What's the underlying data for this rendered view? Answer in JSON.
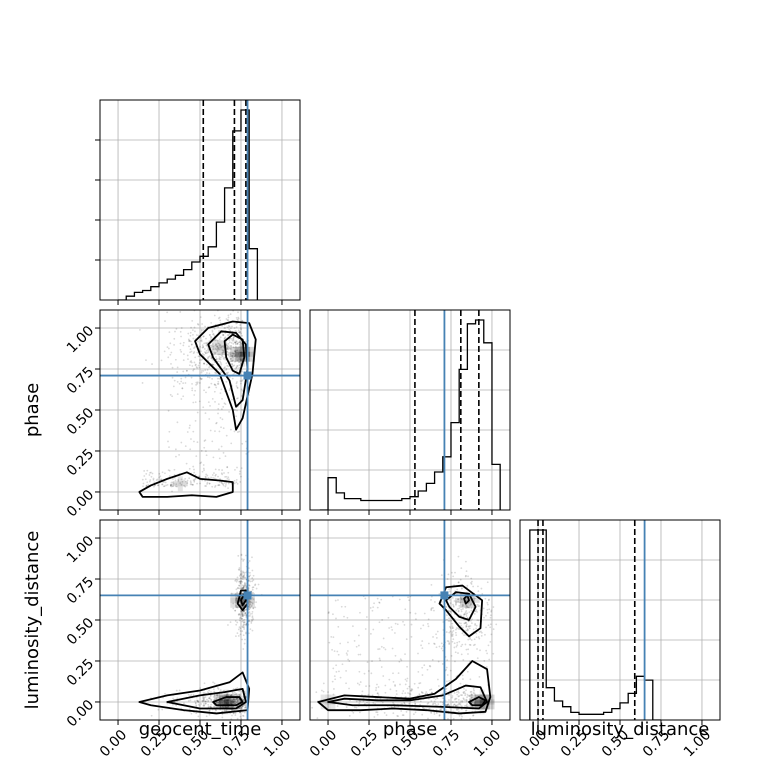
{
  "chart_data": {
    "type": "corner",
    "parameters": [
      "geocent_time",
      "phase",
      "luminosity_distance"
    ],
    "axis_labels": {
      "x": [
        "geocent_time",
        "phase",
        "luminosity_distance"
      ],
      "y": [
        "phase",
        "luminosity_distance"
      ]
    },
    "tick_labels": [
      "0.00",
      "0.25",
      "0.50",
      "0.75",
      "1.00"
    ],
    "ticks": [
      0,
      0.25,
      0.5,
      0.75,
      1.0
    ],
    "xlim": [
      -0.11,
      1.11
    ],
    "ylim": [
      -0.11,
      1.11
    ],
    "grid": true,
    "truths": {
      "geocent_time": 0.79,
      "phase": 0.71,
      "luminosity_distance": 0.65
    },
    "truth_color": "#4682b4",
    "quantiles": {
      "geocent_time": [
        0.52,
        0.71,
        0.78
      ],
      "phase": [
        0.53,
        0.81,
        0.92
      ],
      "luminosity_distance": [
        0.0,
        0.03,
        0.59
      ]
    },
    "histograms": [
      {
        "parameter": "geocent_time",
        "bin_edges": [
          0.0,
          0.05,
          0.1,
          0.15,
          0.2,
          0.25,
          0.3,
          0.35,
          0.4,
          0.45,
          0.5,
          0.55,
          0.6,
          0.65,
          0.7,
          0.75,
          0.8,
          0.85
        ],
        "counts": [
          0.0,
          0.02,
          0.04,
          0.05,
          0.07,
          0.09,
          0.11,
          0.13,
          0.16,
          0.2,
          0.23,
          0.28,
          0.41,
          0.59,
          0.89,
          1.0,
          0.27
        ]
      },
      {
        "parameter": "phase",
        "bin_edges": [
          -0.05,
          0.0,
          0.05,
          0.1,
          0.15,
          0.2,
          0.25,
          0.3,
          0.35,
          0.4,
          0.45,
          0.5,
          0.55,
          0.6,
          0.65,
          0.7,
          0.75,
          0.8,
          0.85,
          0.9,
          0.95,
          1.0,
          1.05
        ],
        "counts": [
          0.0,
          0.17,
          0.09,
          0.06,
          0.06,
          0.05,
          0.05,
          0.05,
          0.05,
          0.05,
          0.06,
          0.07,
          0.1,
          0.14,
          0.2,
          0.28,
          0.46,
          0.74,
          0.98,
          1.0,
          0.88,
          0.24
        ]
      },
      {
        "parameter": "luminosity_distance",
        "bin_edges": [
          -0.05,
          0.0,
          0.05,
          0.1,
          0.15,
          0.2,
          0.25,
          0.3,
          0.35,
          0.4,
          0.45,
          0.5,
          0.55,
          0.6,
          0.65,
          0.7,
          0.75
        ],
        "counts": [
          1.0,
          1.0,
          0.17,
          0.1,
          0.07,
          0.04,
          0.03,
          0.03,
          0.03,
          0.04,
          0.06,
          0.09,
          0.14,
          0.23,
          0.21,
          0.0
        ]
      }
    ],
    "scatter_panels": [
      {
        "x": "geocent_time",
        "y": "phase",
        "density_peaks": [
          {
            "x": 0.76,
            "y": 0.84,
            "weight": 1.0
          },
          {
            "x": 0.62,
            "y": 0.88,
            "weight": 0.35
          },
          {
            "x": 0.38,
            "y": 0.05,
            "weight": 0.25
          }
        ],
        "contours": [
          [
            [
              0.47,
              0.92
            ],
            [
              0.55,
              1.0
            ],
            [
              0.7,
              1.04
            ],
            [
              0.8,
              1.03
            ],
            [
              0.84,
              0.93
            ],
            [
              0.82,
              0.72
            ],
            [
              0.76,
              0.45
            ],
            [
              0.72,
              0.38
            ],
            [
              0.7,
              0.5
            ],
            [
              0.62,
              0.72
            ],
            [
              0.5,
              0.84
            ],
            [
              0.47,
              0.92
            ]
          ],
          [
            [
              0.55,
              0.9
            ],
            [
              0.63,
              0.98
            ],
            [
              0.72,
              0.97
            ],
            [
              0.78,
              0.9
            ],
            [
              0.79,
              0.75
            ],
            [
              0.76,
              0.56
            ],
            [
              0.72,
              0.52
            ],
            [
              0.68,
              0.68
            ],
            [
              0.58,
              0.82
            ],
            [
              0.55,
              0.9
            ]
          ],
          [
            [
              0.65,
              0.92
            ],
            [
              0.7,
              0.96
            ],
            [
              0.76,
              0.93
            ],
            [
              0.77,
              0.82
            ],
            [
              0.74,
              0.72
            ],
            [
              0.7,
              0.74
            ],
            [
              0.66,
              0.82
            ],
            [
              0.65,
              0.92
            ]
          ],
          [
            [
              0.13,
              0.0
            ],
            [
              0.2,
              0.04
            ],
            [
              0.3,
              0.08
            ],
            [
              0.42,
              0.12
            ],
            [
              0.5,
              0.08
            ],
            [
              0.62,
              0.07
            ],
            [
              0.7,
              0.06
            ],
            [
              0.7,
              0.0
            ],
            [
              0.6,
              -0.03
            ],
            [
              0.45,
              -0.02
            ],
            [
              0.3,
              -0.03
            ],
            [
              0.15,
              -0.03
            ],
            [
              0.13,
              0.0
            ]
          ]
        ]
      },
      {
        "x": "geocent_time",
        "y": "luminosity_distance",
        "density_peaks": [
          {
            "x": 0.66,
            "y": 0.0,
            "weight": 1.0
          },
          {
            "x": 0.76,
            "y": 0.62,
            "weight": 0.7
          }
        ],
        "contours": [
          [
            [
              0.13,
              0.0
            ],
            [
              0.3,
              0.04
            ],
            [
              0.5,
              0.07
            ],
            [
              0.68,
              0.12
            ],
            [
              0.76,
              0.18
            ],
            [
              0.8,
              0.08
            ],
            [
              0.79,
              -0.05
            ],
            [
              0.6,
              -0.07
            ],
            [
              0.4,
              -0.05
            ],
            [
              0.2,
              -0.02
            ],
            [
              0.13,
              0.0
            ]
          ],
          [
            [
              0.3,
              0.0
            ],
            [
              0.5,
              0.04
            ],
            [
              0.65,
              0.06
            ],
            [
              0.76,
              0.08
            ],
            [
              0.78,
              0.0
            ],
            [
              0.72,
              -0.04
            ],
            [
              0.5,
              -0.04
            ],
            [
              0.3,
              0.0
            ]
          ],
          [
            [
              0.58,
              0.0
            ],
            [
              0.66,
              0.03
            ],
            [
              0.74,
              0.03
            ],
            [
              0.76,
              0.0
            ],
            [
              0.72,
              -0.02
            ],
            [
              0.6,
              -0.02
            ],
            [
              0.58,
              0.0
            ]
          ],
          [
            [
              0.73,
              0.6
            ],
            [
              0.75,
              0.68
            ],
            [
              0.78,
              0.68
            ],
            [
              0.79,
              0.6
            ],
            [
              0.76,
              0.56
            ],
            [
              0.73,
              0.6
            ]
          ],
          [
            [
              0.75,
              0.62
            ],
            [
              0.77,
              0.66
            ],
            [
              0.78,
              0.62
            ],
            [
              0.76,
              0.59
            ],
            [
              0.75,
              0.62
            ]
          ]
        ]
      },
      {
        "x": "phase",
        "y": "luminosity_distance",
        "density_peaks": [
          {
            "x": 0.94,
            "y": 0.0,
            "weight": 1.0
          },
          {
            "x": 0.85,
            "y": 0.62,
            "weight": 0.5
          },
          {
            "x": 0.0,
            "y": 0.0,
            "weight": 0.3
          }
        ],
        "contours": [
          [
            [
              -0.06,
              0.0
            ],
            [
              0.1,
              0.04
            ],
            [
              0.3,
              0.03
            ],
            [
              0.5,
              0.02
            ],
            [
              0.65,
              0.05
            ],
            [
              0.78,
              0.14
            ],
            [
              0.88,
              0.25
            ],
            [
              0.97,
              0.2
            ],
            [
              0.99,
              0.03
            ],
            [
              0.96,
              -0.06
            ],
            [
              0.8,
              -0.07
            ],
            [
              0.6,
              -0.05
            ],
            [
              0.4,
              -0.04
            ],
            [
              0.2,
              -0.05
            ],
            [
              0.0,
              -0.05
            ],
            [
              -0.06,
              0.0
            ]
          ],
          [
            [
              0.0,
              0.0
            ],
            [
              0.1,
              0.02
            ],
            [
              0.3,
              0.01
            ],
            [
              0.5,
              0.01
            ],
            [
              0.7,
              0.04
            ],
            [
              0.84,
              0.1
            ],
            [
              0.93,
              0.09
            ],
            [
              0.97,
              0.0
            ],
            [
              0.92,
              -0.04
            ],
            [
              0.7,
              -0.03
            ],
            [
              0.4,
              -0.02
            ],
            [
              0.15,
              -0.02
            ],
            [
              0.0,
              0.0
            ]
          ],
          [
            [
              0.86,
              0.0
            ],
            [
              0.92,
              0.03
            ],
            [
              0.96,
              0.01
            ],
            [
              0.94,
              -0.02
            ],
            [
              0.88,
              -0.02
            ],
            [
              0.86,
              0.0
            ]
          ],
          [
            [
              0.68,
              0.6
            ],
            [
              0.72,
              0.7
            ],
            [
              0.82,
              0.71
            ],
            [
              0.94,
              0.62
            ],
            [
              0.93,
              0.45
            ],
            [
              0.86,
              0.4
            ],
            [
              0.8,
              0.46
            ],
            [
              0.72,
              0.56
            ],
            [
              0.68,
              0.6
            ]
          ],
          [
            [
              0.72,
              0.62
            ],
            [
              0.78,
              0.67
            ],
            [
              0.86,
              0.66
            ],
            [
              0.9,
              0.58
            ],
            [
              0.86,
              0.5
            ],
            [
              0.8,
              0.52
            ],
            [
              0.74,
              0.58
            ],
            [
              0.72,
              0.62
            ]
          ],
          [
            [
              0.83,
              0.63
            ],
            [
              0.85,
              0.65
            ],
            [
              0.86,
              0.62
            ],
            [
              0.84,
              0.6
            ],
            [
              0.83,
              0.63
            ]
          ]
        ]
      }
    ]
  }
}
